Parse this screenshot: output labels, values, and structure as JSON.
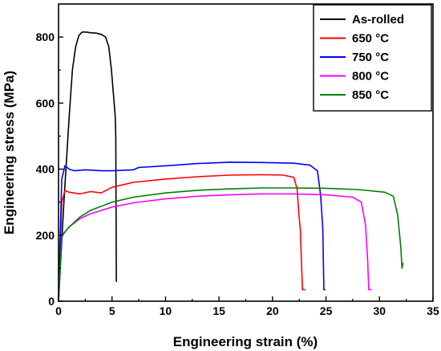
{
  "chart_data": {
    "type": "line",
    "title": "",
    "xlabel": "Engineering strain (%)",
    "ylabel": "Engineering stress (MPa)",
    "xlim": [
      0,
      35
    ],
    "ylim": [
      0,
      900
    ],
    "xticks": [
      0,
      5,
      10,
      15,
      20,
      25,
      30,
      35
    ],
    "yticks": [
      0,
      200,
      400,
      600,
      800
    ],
    "grid": false,
    "legend_position": "top-right",
    "series": [
      {
        "name": "As-rolled",
        "color": "#000000",
        "x": [
          0,
          0.5,
          1.0,
          1.3,
          1.6,
          1.9,
          2.2,
          2.6,
          3.0,
          3.5,
          4.0,
          4.4,
          4.7,
          4.95,
          5.15,
          5.3,
          5.35,
          5.4
        ],
        "y": [
          0,
          300,
          560,
          700,
          770,
          805,
          815,
          815,
          813,
          812,
          808,
          800,
          770,
          700,
          620,
          560,
          500,
          60
        ]
      },
      {
        "name": "650 °C",
        "color": "#ff0000",
        "x": [
          0,
          0.3,
          0.6,
          1.0,
          2.0,
          3.0,
          4.0,
          5.0,
          7.0,
          10.0,
          13.0,
          16.0,
          19.0,
          21.0,
          22.0,
          22.3,
          22.5,
          22.6,
          22.8,
          23.0
        ],
        "y": [
          0,
          300,
          335,
          330,
          325,
          332,
          328,
          345,
          360,
          370,
          377,
          382,
          383,
          382,
          375,
          340,
          250,
          220,
          35,
          35
        ]
      },
      {
        "name": "750 °C",
        "color": "#0000ff",
        "x": [
          0,
          0.3,
          0.6,
          1.0,
          1.5,
          2.5,
          4.0,
          5.0,
          7.0,
          7.5,
          10.0,
          13.0,
          16.0,
          19.0,
          22.0,
          23.5,
          24.2,
          24.5,
          24.7,
          24.8,
          24.9
        ],
        "y": [
          0,
          370,
          410,
          400,
          395,
          398,
          395,
          395,
          398,
          405,
          410,
          417,
          421,
          420,
          418,
          412,
          395,
          320,
          220,
          35,
          35
        ]
      },
      {
        "name": "800 °C",
        "color": "#ff00ff",
        "x": [
          0,
          0.3,
          0.6,
          1.0,
          2.0,
          3.0,
          5.0,
          7.0,
          10.0,
          13.0,
          16.0,
          19.0,
          22.0,
          25.0,
          27.5,
          28.3,
          28.7,
          28.9,
          29.0,
          29.2
        ],
        "y": [
          0,
          200,
          210,
          225,
          250,
          265,
          285,
          298,
          310,
          318,
          322,
          325,
          325,
          322,
          315,
          300,
          230,
          120,
          35,
          35
        ]
      },
      {
        "name": "850 °C",
        "color": "#008000",
        "x": [
          0,
          0.3,
          0.6,
          1.0,
          2.0,
          3.0,
          5.0,
          7.0,
          10.0,
          13.0,
          16.0,
          19.0,
          22.0,
          25.0,
          28.0,
          30.5,
          31.3,
          31.7,
          32.0,
          32.1,
          32.2
        ],
        "y": [
          0,
          195,
          210,
          225,
          255,
          275,
          300,
          315,
          328,
          336,
          340,
          343,
          343,
          342,
          338,
          330,
          318,
          260,
          160,
          100,
          115
        ]
      }
    ]
  }
}
